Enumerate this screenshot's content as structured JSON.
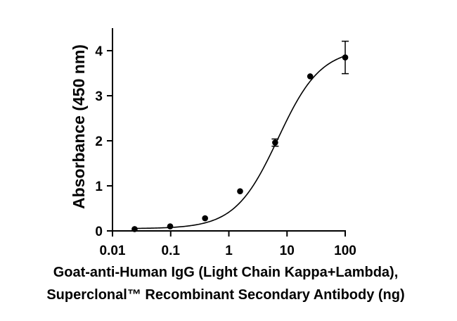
{
  "chart_data": {
    "type": "scatter",
    "title": "",
    "xlabel_lines": [
      "Goat-anti-Human IgG (Light Chain Kappa+Lambda),",
      "Superclonal™ Recombinant Secondary Antibody (ng)"
    ],
    "ylabel": "Absorbance (450 nm)",
    "x_scale": "log",
    "xlim": [
      0.01,
      100
    ],
    "ylim": [
      0,
      4.5
    ],
    "x_ticks": [
      {
        "value": 0.01,
        "label": "0.01"
      },
      {
        "value": 0.1,
        "label": "0.1"
      },
      {
        "value": 1,
        "label": "1"
      },
      {
        "value": 10,
        "label": "10"
      },
      {
        "value": 100,
        "label": "100"
      }
    ],
    "y_ticks": [
      {
        "value": 0,
        "label": "0"
      },
      {
        "value": 1,
        "label": "1"
      },
      {
        "value": 2,
        "label": "2"
      },
      {
        "value": 3,
        "label": "3"
      },
      {
        "value": 4,
        "label": "4"
      }
    ],
    "grid": false,
    "legend": false,
    "series": [
      {
        "points": [
          {
            "x": 0.024,
            "y": 0.04,
            "err": 0.0
          },
          {
            "x": 0.098,
            "y": 0.1,
            "err": 0.0
          },
          {
            "x": 0.39,
            "y": 0.28,
            "err": 0.0
          },
          {
            "x": 1.56,
            "y": 0.88,
            "err": 0.0
          },
          {
            "x": 6.25,
            "y": 1.96,
            "err": 0.08
          },
          {
            "x": 25,
            "y": 3.43,
            "err": 0.0
          },
          {
            "x": 100,
            "y": 3.85,
            "err": 0.36
          }
        ]
      }
    ],
    "fit_curve": {
      "model": "4PL",
      "bottom": 0.05,
      "top": 4.05,
      "ec50": 7.0,
      "hill": 1.18,
      "x_range": [
        0.024,
        100
      ]
    },
    "colors": {
      "marks": "#000000",
      "background": "#ffffff"
    }
  }
}
